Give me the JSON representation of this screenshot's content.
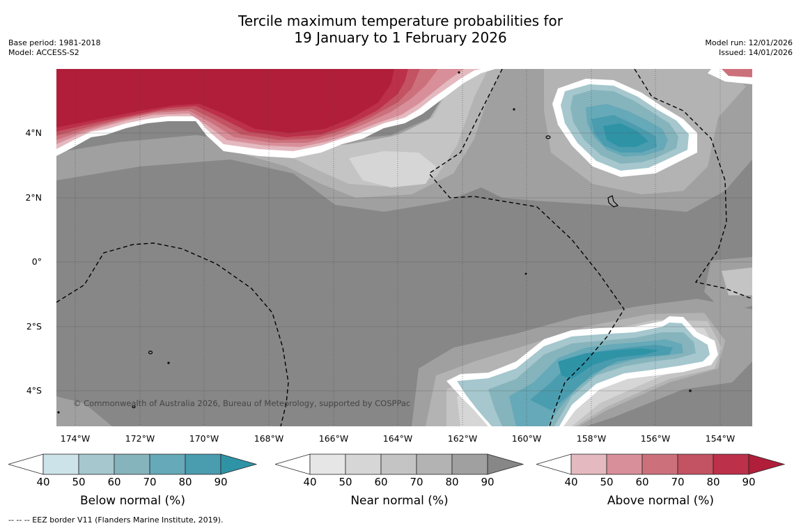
{
  "title": {
    "line1": "Tercile maximum temperature probabilities for",
    "line2": "19 January to 1 February 2026"
  },
  "meta_left": {
    "base_period": "Base period: 1981-2018",
    "model": "Model: ACCESS-S2"
  },
  "meta_right": {
    "model_run": "Model run: 12/01/2026",
    "issued": "Issued: 14/01/2026"
  },
  "map": {
    "copyright": "© Commonwealth of Australia 2026, Bureau of Meteorology, supported by COSPPac",
    "lat_ticks": [
      "4°N",
      "2°N",
      "0°",
      "2°S",
      "4°S"
    ],
    "lon_ticks": [
      "174°W",
      "172°W",
      "170°W",
      "168°W",
      "166°W",
      "164°W",
      "162°W",
      "160°W",
      "158°W",
      "156°W",
      "154°W"
    ],
    "colors": {
      "background_gray": "#878787",
      "above_90": "#b01e3a",
      "below_90": "#2f93a6"
    }
  },
  "legend": [
    {
      "title": "Below normal (%)",
      "ticks": [
        "40",
        "50",
        "60",
        "70",
        "80",
        "90"
      ],
      "colors": [
        "#ffffff",
        "#cde3ea",
        "#a5c7cd",
        "#86b4bc",
        "#66a9b8",
        "#4a9caf",
        "#2f93a6"
      ]
    },
    {
      "title": "Near normal (%)",
      "ticks": [
        "40",
        "50",
        "60",
        "70",
        "80",
        "90"
      ],
      "colors": [
        "#ffffff",
        "#e6e6e6",
        "#d6d6d6",
        "#c4c4c4",
        "#b3b3b3",
        "#a0a0a0",
        "#878787"
      ]
    },
    {
      "title": "Above normal (%)",
      "ticks": [
        "40",
        "50",
        "60",
        "70",
        "80",
        "90"
      ],
      "colors": [
        "#ffffff",
        "#e4b9bf",
        "#d88f9a",
        "#cc717c",
        "#c35262",
        "#bc3049",
        "#b01e3a"
      ]
    }
  ],
  "footnote": "--  --  -- EEZ border V11 (Flanders Marine Institute, 2019)."
}
